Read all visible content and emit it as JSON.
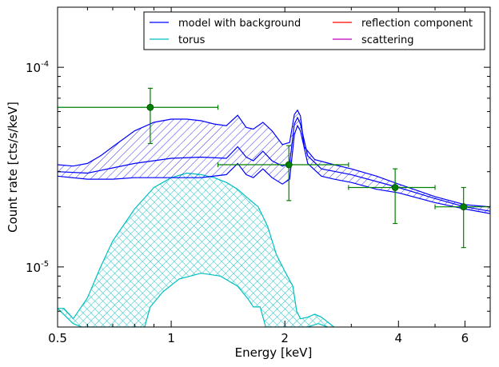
{
  "chart_data": {
    "type": "line",
    "title": "",
    "xlabel": "Energy [keV]",
    "ylabel": "Count rate [cts/s/keV]",
    "xscale": "log",
    "yscale": "log",
    "xlim": [
      0.5,
      7.0
    ],
    "ylim": [
      5e-06,
      0.0002
    ],
    "xticks": [
      {
        "value": 0.5,
        "label": "0.5"
      },
      {
        "value": 1,
        "label": "1"
      },
      {
        "value": 2,
        "label": "2"
      },
      {
        "value": 4,
        "label": "4"
      },
      {
        "value": 6,
        "label": "6"
      }
    ],
    "yticks": [
      {
        "value": 1e-05,
        "base": "10",
        "exp": "-5"
      },
      {
        "value": 0.0001,
        "base": "10",
        "exp": "-4"
      }
    ],
    "grid": false,
    "legend": {
      "placement": "top-right",
      "columns": 2,
      "entries": [
        {
          "label": "model with background",
          "color": "#0000ff"
        },
        {
          "label": "torus",
          "color": "#00bfbf"
        },
        {
          "label": "reflection component",
          "color": "#ff0000"
        },
        {
          "label": "scattering",
          "color": "#bf00bf"
        }
      ]
    },
    "series": [
      {
        "name": "model with background",
        "color": "#0000ff",
        "kind": "band",
        "upper": [
          [
            0.5,
            3.25e-05
          ],
          [
            0.55,
            3.2e-05
          ],
          [
            0.6,
            3.3e-05
          ],
          [
            0.65,
            3.6e-05
          ],
          [
            0.7,
            4e-05
          ],
          [
            0.8,
            4.8e-05
          ],
          [
            0.9,
            5.3e-05
          ],
          [
            1.0,
            5.5e-05
          ],
          [
            1.1,
            5.5e-05
          ],
          [
            1.2,
            5.4e-05
          ],
          [
            1.3,
            5.2e-05
          ],
          [
            1.4,
            5.1e-05
          ],
          [
            1.5,
            5.75e-05
          ],
          [
            1.58,
            5e-05
          ],
          [
            1.65,
            4.9e-05
          ],
          [
            1.75,
            5.3e-05
          ],
          [
            1.85,
            4.8e-05
          ],
          [
            1.97,
            4.1e-05
          ],
          [
            2.06,
            4.2e-05
          ],
          [
            2.12,
            5.8e-05
          ],
          [
            2.16,
            6.1e-05
          ],
          [
            2.2,
            5.7e-05
          ],
          [
            2.25,
            4e-05
          ],
          [
            2.4,
            3.45e-05
          ],
          [
            2.7,
            3.25e-05
          ],
          [
            3.0,
            3.1e-05
          ],
          [
            3.5,
            2.85e-05
          ],
          [
            4.0,
            2.6e-05
          ],
          [
            5.0,
            2.25e-05
          ],
          [
            6.0,
            2.05e-05
          ],
          [
            7.0,
            2e-05
          ]
        ],
        "lower": [
          [
            0.5,
            2.85e-05
          ],
          [
            0.6,
            2.75e-05
          ],
          [
            0.7,
            2.75e-05
          ],
          [
            0.8,
            2.8e-05
          ],
          [
            1.0,
            2.8e-05
          ],
          [
            1.2,
            2.8e-05
          ],
          [
            1.4,
            2.9e-05
          ],
          [
            1.5,
            3.3e-05
          ],
          [
            1.58,
            2.9e-05
          ],
          [
            1.65,
            2.8e-05
          ],
          [
            1.75,
            3.1e-05
          ],
          [
            1.85,
            2.8e-05
          ],
          [
            1.97,
            2.6e-05
          ],
          [
            2.06,
            2.75e-05
          ],
          [
            2.12,
            4.6e-05
          ],
          [
            2.16,
            5.1e-05
          ],
          [
            2.2,
            4.8e-05
          ],
          [
            2.3,
            3.3e-05
          ],
          [
            2.5,
            2.85e-05
          ],
          [
            2.7,
            2.75e-05
          ],
          [
            3.0,
            2.65e-05
          ],
          [
            3.5,
            2.45e-05
          ],
          [
            4.0,
            2.35e-05
          ],
          [
            5.0,
            2.1e-05
          ],
          [
            6.0,
            1.95e-05
          ],
          [
            7.0,
            1.85e-05
          ]
        ],
        "inner": [
          [
            0.5,
            3e-05
          ],
          [
            0.6,
            2.95e-05
          ],
          [
            0.8,
            3.3e-05
          ],
          [
            1.0,
            3.5e-05
          ],
          [
            1.2,
            3.55e-05
          ],
          [
            1.4,
            3.5e-05
          ],
          [
            1.5,
            4e-05
          ],
          [
            1.58,
            3.55e-05
          ],
          [
            1.65,
            3.4e-05
          ],
          [
            1.75,
            3.8e-05
          ],
          [
            1.85,
            3.4e-05
          ],
          [
            1.97,
            3.2e-05
          ],
          [
            2.06,
            3.3e-05
          ],
          [
            2.12,
            5.2e-05
          ],
          [
            2.16,
            5.6e-05
          ],
          [
            2.2,
            5.2e-05
          ],
          [
            2.3,
            3.6e-05
          ],
          [
            2.5,
            3.1e-05
          ],
          [
            3.0,
            2.9e-05
          ],
          [
            4.0,
            2.5e-05
          ],
          [
            5.0,
            2.2e-05
          ],
          [
            6.0,
            2e-05
          ],
          [
            7.0,
            1.9e-05
          ]
        ]
      },
      {
        "name": "torus",
        "color": "#00bfbf",
        "kind": "band",
        "upper": [
          [
            0.5,
            6.2e-06
          ],
          [
            0.52,
            6.2e-06
          ],
          [
            0.55,
            5.5e-06
          ],
          [
            0.6,
            7e-06
          ],
          [
            0.65,
            1e-05
          ],
          [
            0.7,
            1.35e-05
          ],
          [
            0.8,
            1.95e-05
          ],
          [
            0.9,
            2.5e-05
          ],
          [
            1.0,
            2.8e-05
          ],
          [
            1.1,
            2.95e-05
          ],
          [
            1.2,
            2.9e-05
          ],
          [
            1.3,
            2.8e-05
          ],
          [
            1.4,
            2.65e-05
          ],
          [
            1.5,
            2.45e-05
          ],
          [
            1.6,
            2.2e-05
          ],
          [
            1.7,
            2e-05
          ],
          [
            1.8,
            1.6e-05
          ],
          [
            1.9,
            1.15e-05
          ],
          [
            2.0,
            9.5e-06
          ],
          [
            2.1,
            8e-06
          ],
          [
            2.15,
            6e-06
          ],
          [
            2.2,
            5.5e-06
          ],
          [
            2.3,
            5.6e-06
          ],
          [
            2.4,
            5.8e-06
          ],
          [
            2.5,
            5.6e-06
          ],
          [
            2.7,
            5e-06
          ]
        ],
        "lower": [
          [
            0.5,
            6.2e-06
          ],
          [
            0.55,
            5.2e-06
          ],
          [
            0.58,
            5e-06
          ],
          [
            0.85,
            5e-06
          ],
          [
            0.88,
            6.3e-06
          ],
          [
            0.95,
            7.5e-06
          ],
          [
            1.05,
            8.7e-06
          ],
          [
            1.2,
            9.3e-06
          ],
          [
            1.35,
            9e-06
          ],
          [
            1.5,
            8e-06
          ],
          [
            1.6,
            6.9e-06
          ],
          [
            1.65,
            6.3e-06
          ],
          [
            1.72,
            6.3e-06
          ],
          [
            1.78,
            5e-06
          ],
          [
            2.3,
            5e-06
          ],
          [
            2.45,
            5.2e-06
          ],
          [
            2.6,
            5e-06
          ]
        ]
      },
      {
        "name": "reflection component",
        "color": "#ff0000",
        "kind": "line",
        "points": []
      },
      {
        "name": "scattering",
        "color": "#bf00bf",
        "kind": "line",
        "points": []
      }
    ],
    "data_points": {
      "color": "#008000",
      "points": [
        {
          "x": 0.88,
          "y": 6.3e-05,
          "xerr": [
            0.5,
            1.33
          ],
          "yerr": [
            4.15e-05,
            7.85e-05
          ]
        },
        {
          "x": 2.05,
          "y": 3.25e-05,
          "xerr": [
            1.33,
            2.95
          ],
          "yerr": [
            2.15e-05,
            4.05e-05
          ]
        },
        {
          "x": 3.92,
          "y": 2.5e-05,
          "xerr": [
            2.95,
            5.0
          ],
          "yerr": [
            1.65e-05,
            3.1e-05
          ]
        },
        {
          "x": 5.95,
          "y": 2e-05,
          "xerr": [
            5.0,
            7.0
          ],
          "yerr": [
            1.25e-05,
            2.5e-05
          ]
        }
      ]
    }
  }
}
